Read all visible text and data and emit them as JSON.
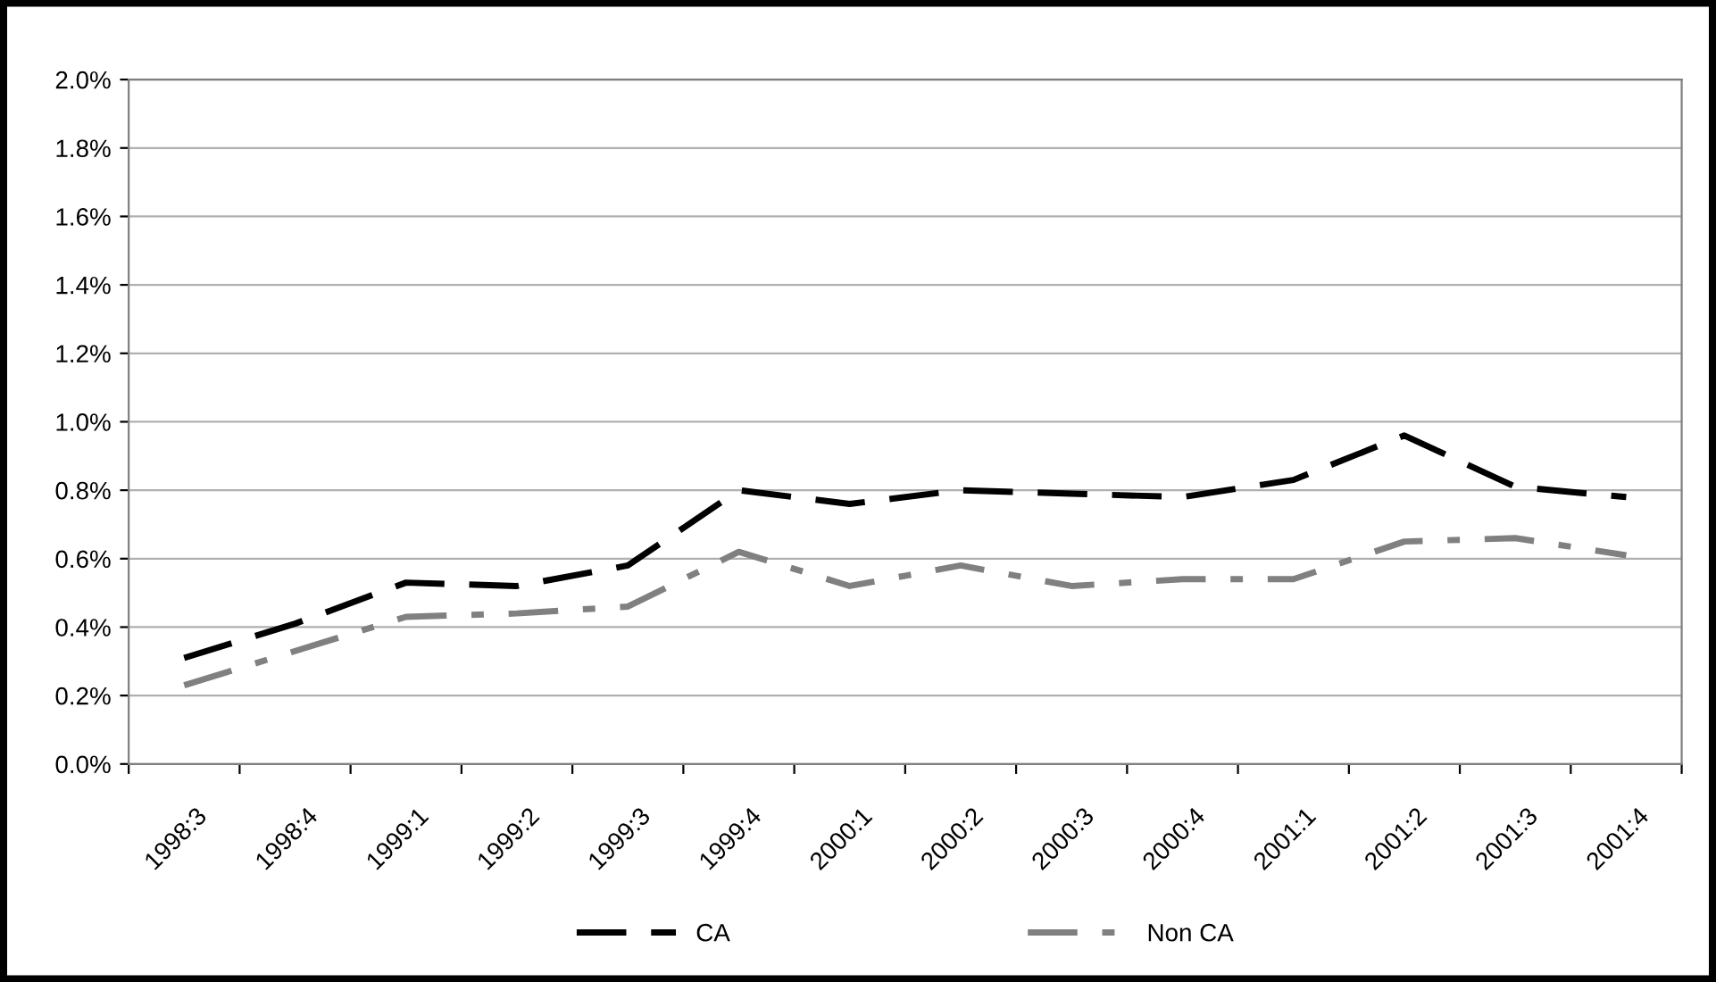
{
  "chart_data": {
    "type": "line",
    "categories": [
      "1998:3",
      "1998:4",
      "1999:1",
      "1999:2",
      "1999:3",
      "1999:4",
      "2000:1",
      "2000:2",
      "2000:3",
      "2000:4",
      "2001:1",
      "2001:2",
      "2001:3",
      "2001:4"
    ],
    "series": [
      {
        "name": "CA",
        "color": "#000000",
        "line_style": "dashed",
        "values": [
          0.31,
          0.41,
          0.53,
          0.52,
          0.58,
          0.8,
          0.76,
          0.8,
          0.79,
          0.78,
          0.83,
          0.96,
          0.81,
          0.78
        ]
      },
      {
        "name": "Non CA",
        "color": "#808080",
        "line_style": "dashdot",
        "values": [
          0.23,
          0.33,
          0.43,
          0.44,
          0.46,
          0.62,
          0.52,
          0.58,
          0.52,
          0.54,
          0.54,
          0.65,
          0.66,
          0.61
        ]
      }
    ],
    "ylim": [
      0,
      2.0
    ],
    "yticks": [
      {
        "value": 0,
        "label": "0.0%"
      },
      {
        "value": 0.2,
        "label": "0.2%"
      },
      {
        "value": 0.4,
        "label": "0.4%"
      },
      {
        "value": 0.6,
        "label": "0.6%"
      },
      {
        "value": 0.8,
        "label": "0.8%"
      },
      {
        "value": 1.0,
        "label": "1.0%"
      },
      {
        "value": 1.2,
        "label": "1.2%"
      },
      {
        "value": 1.4,
        "label": "1.4%"
      },
      {
        "value": 1.6,
        "label": "1.6%"
      },
      {
        "value": 1.8,
        "label": "1.8%"
      },
      {
        "value": 2.0,
        "label": "2.0%"
      }
    ],
    "grid": "y",
    "legend": "bottom",
    "marker": "none"
  }
}
